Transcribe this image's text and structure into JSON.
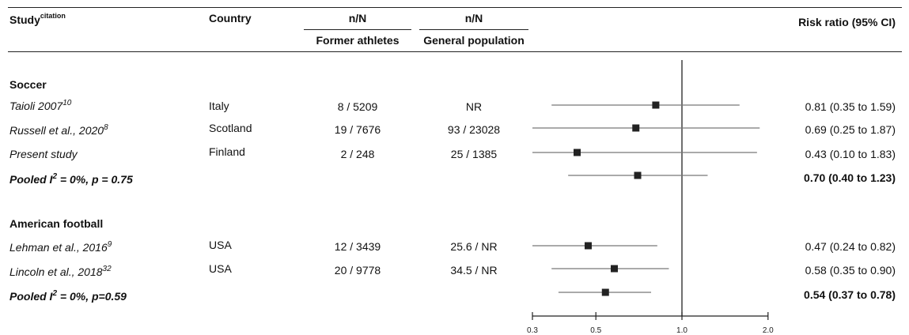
{
  "header": {
    "study": "Study",
    "study_sup": "citation",
    "country": "Country",
    "nN_athletes": "n/N",
    "nN_general": "n/N",
    "former_athletes": "Former athletes",
    "general_population": "General population",
    "risk_ratio": "Risk ratio (95% CI)"
  },
  "groups": [
    {
      "name": "Soccer",
      "rows": [
        {
          "study": "Taioli 2007",
          "ref": "10",
          "country": "Italy",
          "athletes": "8 / 5209",
          "general": "NR",
          "ci_text": "0.81 (0.35 to 1.59)"
        },
        {
          "study": "Russell et al., 2020",
          "ref": "8",
          "country": "Scotland",
          "athletes": "19 / 7676",
          "general": "93 / 23028",
          "ci_text": "0.69 (0.25 to 1.87)"
        },
        {
          "study": "Present study",
          "ref": "",
          "country": "Finland",
          "athletes": "2 / 248",
          "general": "25 / 1385",
          "ci_text": "0.43 (0.10 to 1.83)"
        }
      ],
      "pooled": {
        "label_a": "Pooled I",
        "label_b": "2",
        "label_c": " = 0%, p = 0.75",
        "ci_text": "0.70 (0.40 to 1.23)"
      }
    },
    {
      "name": "American football",
      "rows": [
        {
          "study": "Lehman et al., 2016",
          "ref": "9",
          "country": "USA",
          "athletes": "12 / 3439",
          "general": "25.6 / NR",
          "ci_text": "0.47 (0.24 to 0.82)"
        },
        {
          "study": "Lincoln et al., 2018",
          "ref": "32",
          "country": "USA",
          "athletes": "20 / 9778",
          "general": "34.5 / NR",
          "ci_text": "0.58 (0.35 to 0.90)"
        }
      ],
      "pooled": {
        "label_a": "Pooled I",
        "label_b": "2",
        "label_c": " = 0%, p=0.59",
        "ci_text": "0.54 (0.37 to 0.78)"
      }
    }
  ],
  "chart_data": {
    "type": "scatter",
    "title": "",
    "xlabel": "",
    "ylabel": "",
    "x_scale": "log",
    "xlim": [
      0.3,
      2.0
    ],
    "x_ticks": [
      "0.3",
      "0.5",
      "1.0",
      "2.0"
    ],
    "x_tick_values": [
      0.3,
      0.5,
      1.0,
      2.0
    ],
    "reference_line": 1.0,
    "series": [
      {
        "estimates": [
          {
            "study": "Taioli 2007",
            "rr": 0.81,
            "lo": 0.35,
            "hi": 1.59
          },
          {
            "study": "Russell et al., 2020",
            "rr": 0.69,
            "lo": 0.25,
            "hi": 1.87
          },
          {
            "study": "Present study",
            "rr": 0.43,
            "lo": 0.1,
            "hi": 1.83
          },
          {
            "study": "Pooled soccer",
            "rr": 0.7,
            "lo": 0.4,
            "hi": 1.23
          },
          {
            "study": "Lehman et al., 2016",
            "rr": 0.47,
            "lo": 0.24,
            "hi": 0.82
          },
          {
            "study": "Lincoln et al., 2018",
            "rr": 0.58,
            "lo": 0.35,
            "hi": 0.9
          },
          {
            "study": "Pooled american football",
            "rr": 0.54,
            "lo": 0.37,
            "hi": 0.78
          }
        ]
      }
    ],
    "marker_color": "#222222",
    "line_color": "#777777"
  }
}
